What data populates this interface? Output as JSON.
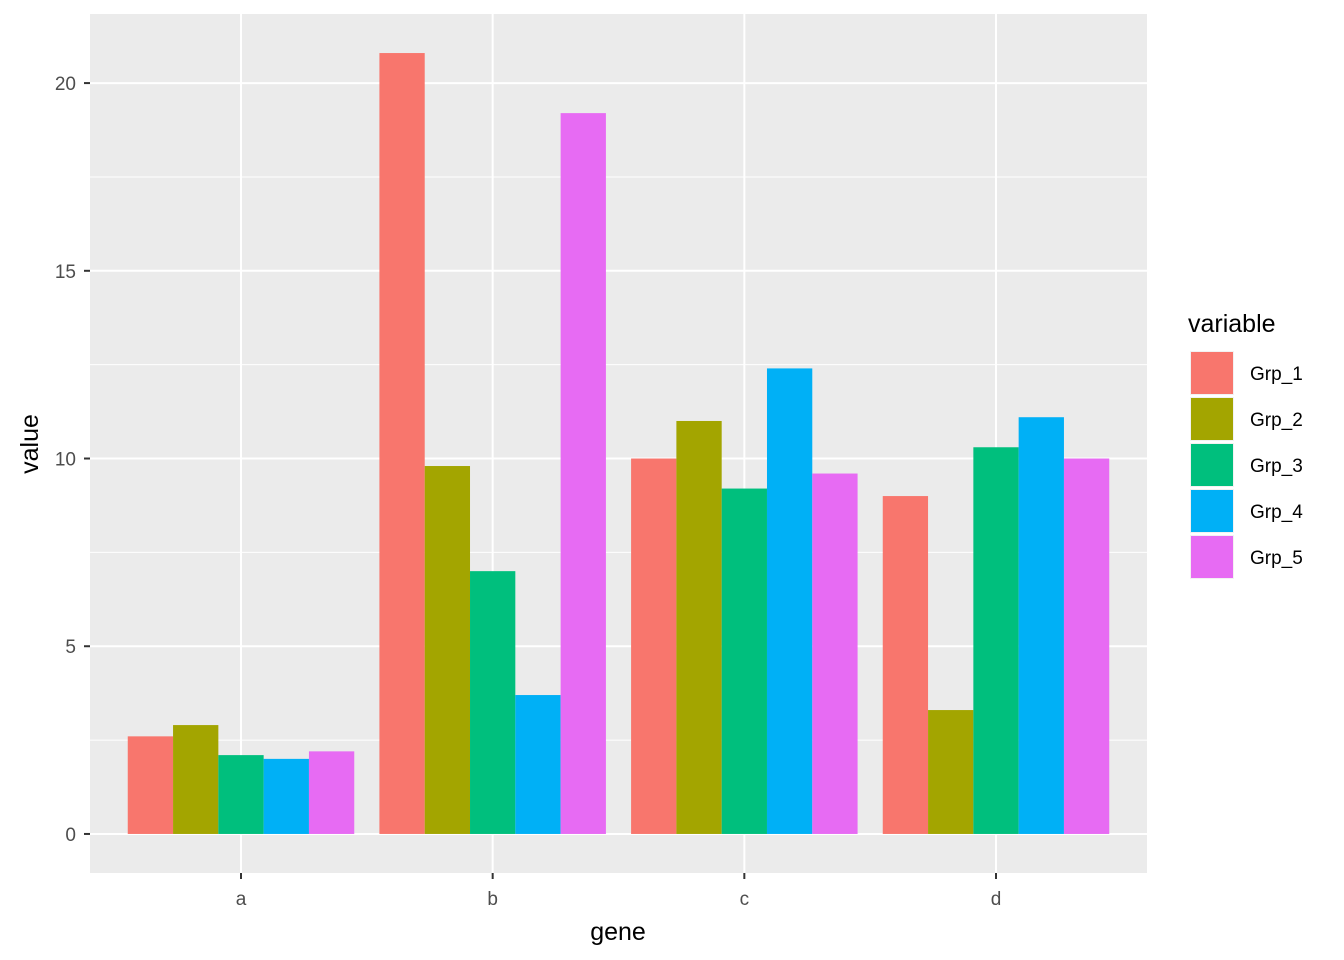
{
  "chart_data": {
    "type": "bar",
    "title": "",
    "xlabel": "gene",
    "ylabel": "value",
    "categories": [
      "a",
      "b",
      "c",
      "d"
    ],
    "series": [
      {
        "name": "Grp_1",
        "color": "#F8766D",
        "values": [
          2.6,
          20.8,
          10.0,
          9.0
        ]
      },
      {
        "name": "Grp_2",
        "color": "#A3A500",
        "values": [
          2.9,
          9.8,
          11.0,
          3.3
        ]
      },
      {
        "name": "Grp_3",
        "color": "#00BF7D",
        "values": [
          2.1,
          7.0,
          9.2,
          10.3
        ]
      },
      {
        "name": "Grp_4",
        "color": "#00B0F6",
        "values": [
          2.0,
          3.7,
          12.4,
          11.1
        ]
      },
      {
        "name": "Grp_5",
        "color": "#E76BF3",
        "values": [
          2.2,
          19.2,
          9.6,
          10.0
        ]
      }
    ],
    "yticks": [
      0,
      5,
      10,
      15,
      20
    ],
    "ylim": [
      -1.04,
      21.84
    ],
    "grid": true,
    "legend": {
      "title": "variable",
      "position": "right"
    },
    "panel_background": "#EBEBEB",
    "grid_color": "#FFFFFF"
  }
}
